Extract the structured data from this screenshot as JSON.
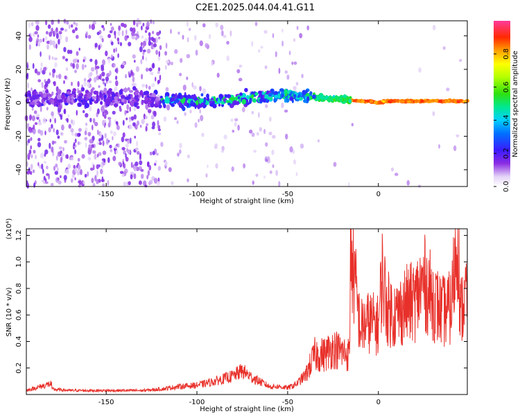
{
  "title": "C2E1.2025.044.04.41.G11",
  "colorbar": {
    "label": "Normalized spectral amplitude",
    "ticks": [
      "0.0",
      "0.2",
      "0.4",
      "0.6",
      "0.8"
    ],
    "tick_values": [
      0.0,
      0.2,
      0.4,
      0.6,
      0.8
    ],
    "range": [
      0,
      1
    ]
  },
  "chart_data": [
    {
      "type": "heatmap",
      "xlabel": "Height of straight line (km)",
      "ylabel": "Frequency (Hz)",
      "xlim": [
        -194,
        49
      ],
      "ylim": [
        -50,
        49
      ],
      "xticks": [
        -150,
        -100,
        -50,
        0
      ],
      "xticklabels": [
        "-150",
        "-100",
        "-50",
        "0"
      ],
      "yticks": [
        -40,
        -20,
        0,
        20,
        40
      ],
      "yticklabels": [
        "-40",
        "-20",
        "0",
        "20",
        "40"
      ],
      "ridge": {
        "x": [
          -194,
          -150,
          -120,
          -100,
          -80,
          -60,
          -50,
          -40,
          -30,
          -20,
          -10,
          -5,
          0,
          5,
          10,
          20,
          30,
          49
        ],
        "y": [
          3,
          3,
          2,
          1,
          2,
          4,
          5,
          4,
          3,
          2,
          1,
          1,
          0,
          1,
          1,
          1,
          1,
          1
        ]
      }
    },
    {
      "type": "line",
      "xlabel": "Height of straight line (km)",
      "ylabel": "SNR (10 * v/v)",
      "yscale_label": "(x10⁴)",
      "xlim": [
        -194,
        49
      ],
      "ylim": [
        0,
        1.25
      ],
      "xticks": [
        -150,
        -100,
        -50,
        0
      ],
      "xticklabels": [
        "-150",
        "-100",
        "-50",
        "0"
      ],
      "yticks": [
        0.2,
        0.4,
        0.6,
        0.8,
        1.0,
        1.2
      ],
      "yticklabels": [
        "0.2",
        "0.4",
        "0.6",
        "0.8",
        "1.0",
        "1.2"
      ],
      "color": "#e8302a",
      "series": [
        {
          "x": [
            -194,
            -180,
            -181,
            -170,
            -150,
            -130,
            -120,
            -110,
            -100,
            -90,
            -80,
            -75,
            -70,
            -60,
            -55,
            -50,
            -45,
            -40,
            -35,
            -30,
            -25,
            -20,
            -16,
            -15,
            -10,
            -5,
            0,
            2,
            5,
            10,
            15,
            20,
            25,
            30,
            35,
            40,
            44,
            45,
            49
          ],
          "y": [
            0.03,
            0.04,
            0.08,
            0.03,
            0.03,
            0.03,
            0.04,
            0.06,
            0.07,
            0.1,
            0.14,
            0.18,
            0.13,
            0.06,
            0.06,
            0.05,
            0.08,
            0.15,
            0.3,
            0.3,
            0.35,
            0.32,
            0.3,
            1.07,
            0.5,
            0.55,
            0.52,
            0.9,
            0.65,
            0.6,
            0.68,
            0.7,
            0.85,
            0.72,
            0.62,
            0.65,
            1.25,
            0.6,
            0.8
          ]
        }
      ]
    }
  ]
}
